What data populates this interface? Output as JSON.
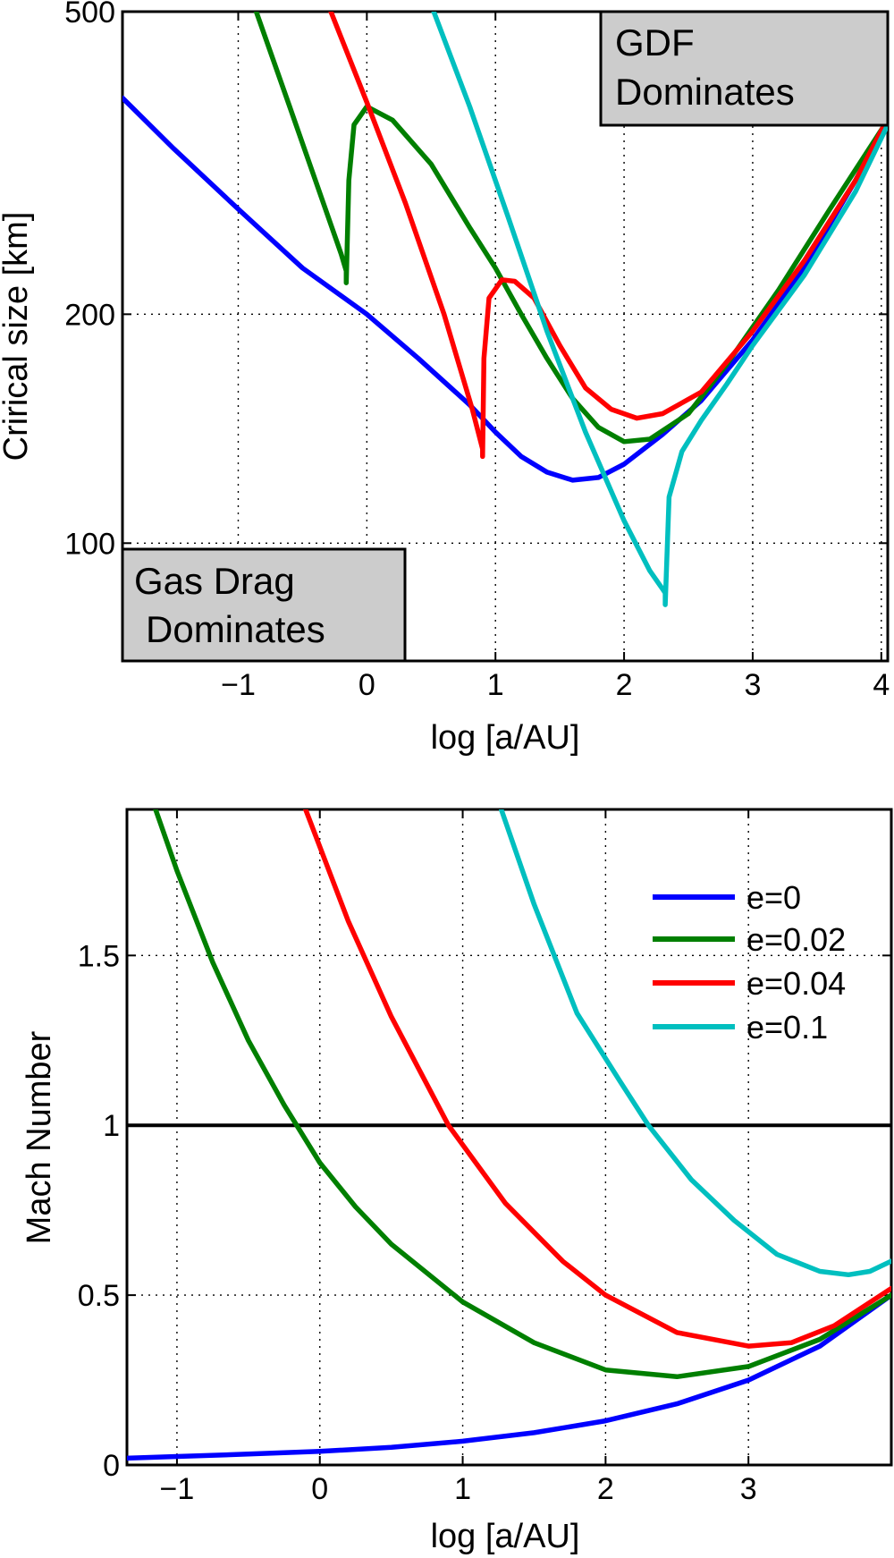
{
  "colors": {
    "e0": "#0000ff",
    "e002": "#007f00",
    "e004": "#ff0000",
    "e01": "#00bfbf",
    "box_fill": "#cccccc"
  },
  "chart_data": [
    {
      "type": "line",
      "yscale": "log",
      "title": "",
      "xlabel": "log [a/AU]",
      "ylabel": "Crirical size [km]",
      "xlim": [
        -1.9,
        4.05
      ],
      "ylim": [
        70,
        500
      ],
      "xticks": [
        -1,
        0,
        1,
        2,
        3,
        4
      ],
      "xtick_labels": [
        "−1",
        "0",
        "1",
        "2",
        "3",
        "4"
      ],
      "yticks": [
        100,
        200,
        500
      ],
      "ytick_labels": [
        "100",
        "200",
        "500"
      ],
      "grid": true,
      "annotations": [
        {
          "id": "gdf",
          "lines": [
            "GDF",
            "Dominates"
          ],
          "placement": "top-right"
        },
        {
          "id": "gasdrag",
          "lines": [
            "Gas Drag",
            "Dominates"
          ],
          "placement": "bottom-left"
        }
      ],
      "series": [
        {
          "name": "e=0",
          "color_key": "e0",
          "x": [
            -1.9,
            -1.5,
            -1.0,
            -0.5,
            0,
            0.4,
            0.8,
            1.0,
            1.2,
            1.4,
            1.6,
            1.8,
            2.0,
            2.3,
            2.6,
            3.0,
            3.4,
            3.8,
            4.05
          ],
          "y": [
            385,
            330,
            275,
            230,
            200,
            175,
            152,
            140,
            130,
            124,
            121,
            122,
            127,
            139,
            154,
            185,
            230,
            300,
            360
          ]
        },
        {
          "name": "e=0.02",
          "color_key": "e002",
          "x": [
            -0.86,
            -0.6,
            -0.4,
            -0.2,
            -0.16,
            -0.16,
            -0.14,
            -0.1,
            0,
            0.2,
            0.5,
            0.8,
            1.0,
            1.2,
            1.4,
            1.6,
            1.8,
            2.0,
            2.2,
            2.5,
            2.8,
            3.2,
            3.6,
            4.05
          ],
          "y": [
            500,
            375,
            300,
            240,
            228,
            220,
            300,
            355,
            375,
            360,
            315,
            260,
            230,
            200,
            175,
            155,
            142,
            136,
            137,
            148,
            172,
            215,
            275,
            360
          ]
        },
        {
          "name": "e=0.04",
          "color_key": "e004",
          "x": [
            -0.28,
            0,
            0.3,
            0.6,
            0.82,
            0.9,
            0.9,
            0.91,
            0.95,
            1.05,
            1.15,
            1.3,
            1.5,
            1.7,
            1.9,
            2.1,
            2.3,
            2.6,
            3.0,
            3.4,
            3.8,
            4.05
          ],
          "y": [
            500,
            380,
            280,
            200,
            150,
            133,
            130,
            175,
            210,
            222,
            221,
            210,
            182,
            160,
            150,
            146,
            148,
            158,
            190,
            235,
            300,
            362
          ]
        },
        {
          "name": "e=0.1",
          "color_key": "e01",
          "x": [
            0.52,
            0.8,
            1.1,
            1.4,
            1.7,
            2.0,
            2.2,
            2.3,
            2.32,
            2.32,
            2.35,
            2.45,
            2.6,
            2.8,
            3.0,
            3.4,
            3.8,
            4.05
          ],
          "y": [
            500,
            375,
            268,
            190,
            140,
            107,
            92,
            87,
            86,
            83,
            115,
            132,
            145,
            162,
            182,
            225,
            290,
            355
          ]
        }
      ]
    },
    {
      "type": "line",
      "title": "",
      "xlabel": "log [a/AU]",
      "ylabel": "Mach Number",
      "xlim": [
        -1.35,
        4.0
      ],
      "ylim": [
        0,
        1.93
      ],
      "xticks": [
        -1,
        0,
        1,
        2,
        3
      ],
      "xtick_labels": [
        "−1",
        "0",
        "1",
        "2",
        "3"
      ],
      "yticks": [
        0,
        0.5,
        1,
        1.5
      ],
      "ytick_labels": [
        "0",
        "0.5",
        "1",
        "1.5"
      ],
      "grid": true,
      "reference_line": {
        "y": 1,
        "color": "#000000"
      },
      "legend": {
        "placement": "top-right",
        "entries": [
          "e=0",
          "e=0.02",
          "e=0.04",
          "e=0.1"
        ]
      },
      "series": [
        {
          "name": "e=0",
          "color_key": "e0",
          "x": [
            -1.35,
            -1.0,
            -0.5,
            0,
            0.5,
            1.0,
            1.5,
            2.0,
            2.5,
            3.0,
            3.5,
            4.0
          ],
          "y": [
            0.02,
            0.025,
            0.032,
            0.04,
            0.052,
            0.07,
            0.095,
            0.13,
            0.18,
            0.25,
            0.35,
            0.5
          ]
        },
        {
          "name": "e=0.02",
          "color_key": "e002",
          "x": [
            -1.15,
            -1.0,
            -0.75,
            -0.5,
            -0.25,
            0,
            0.25,
            0.5,
            1.0,
            1.5,
            2.0,
            2.5,
            3.0,
            3.5,
            4.0
          ],
          "y": [
            1.93,
            1.75,
            1.48,
            1.25,
            1.06,
            0.89,
            0.76,
            0.65,
            0.48,
            0.36,
            0.28,
            0.26,
            0.29,
            0.37,
            0.5
          ]
        },
        {
          "name": "e=0.04",
          "color_key": "e004",
          "x": [
            -0.1,
            0.2,
            0.5,
            0.9,
            1.3,
            1.7,
            2.0,
            2.5,
            3.0,
            3.3,
            3.6,
            4.0
          ],
          "y": [
            1.93,
            1.6,
            1.32,
            1.0,
            0.77,
            0.6,
            0.5,
            0.39,
            0.35,
            0.36,
            0.41,
            0.52
          ]
        },
        {
          "name": "e=0.1",
          "color_key": "e01",
          "x": [
            1.27,
            1.5,
            1.8,
            2.1,
            2.3,
            2.6,
            2.9,
            3.2,
            3.5,
            3.7,
            3.85,
            4.0
          ],
          "y": [
            1.93,
            1.65,
            1.33,
            1.13,
            1.0,
            0.84,
            0.72,
            0.62,
            0.57,
            0.56,
            0.57,
            0.6
          ]
        }
      ]
    }
  ]
}
